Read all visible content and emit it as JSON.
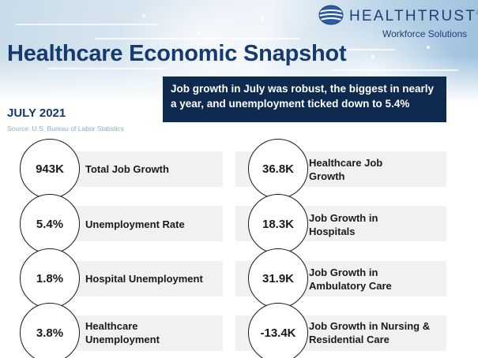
{
  "brand": {
    "name": "HEALTHTRUST",
    "trademark": "®",
    "subtitle": "Workforce Solutions",
    "colors": {
      "navy": "#0e2a4f",
      "title_blue": "#173a6e",
      "logo_blue": "#1f3f75"
    }
  },
  "title": "Healthcare Economic Snapshot",
  "headline": "Job growth in July was robust, the biggest in nearly a year, and unemployment ticked down to 5.4%",
  "period": "JULY 2021",
  "source": "Source: U.S. Bureau of Labor Statistics",
  "stats_left": [
    {
      "value": "943K",
      "label": "Total Job Growth"
    },
    {
      "value": "5.4%",
      "label": "Unemployment Rate"
    },
    {
      "value": "1.8%",
      "label": "Hospital Unemployment"
    },
    {
      "value": "3.8%",
      "label": "Healthcare Unemployment"
    }
  ],
  "stats_right": [
    {
      "value": "36.8K",
      "label": "Healthcare Job Growth"
    },
    {
      "value": "18.3K",
      "label": "Job Growth in Hospitals"
    },
    {
      "value": "31.9K",
      "label": "Job Growth in Ambulatory Care"
    },
    {
      "value": "-13.4K",
      "label": "Job Growth in Nursing & Residential Care"
    }
  ]
}
